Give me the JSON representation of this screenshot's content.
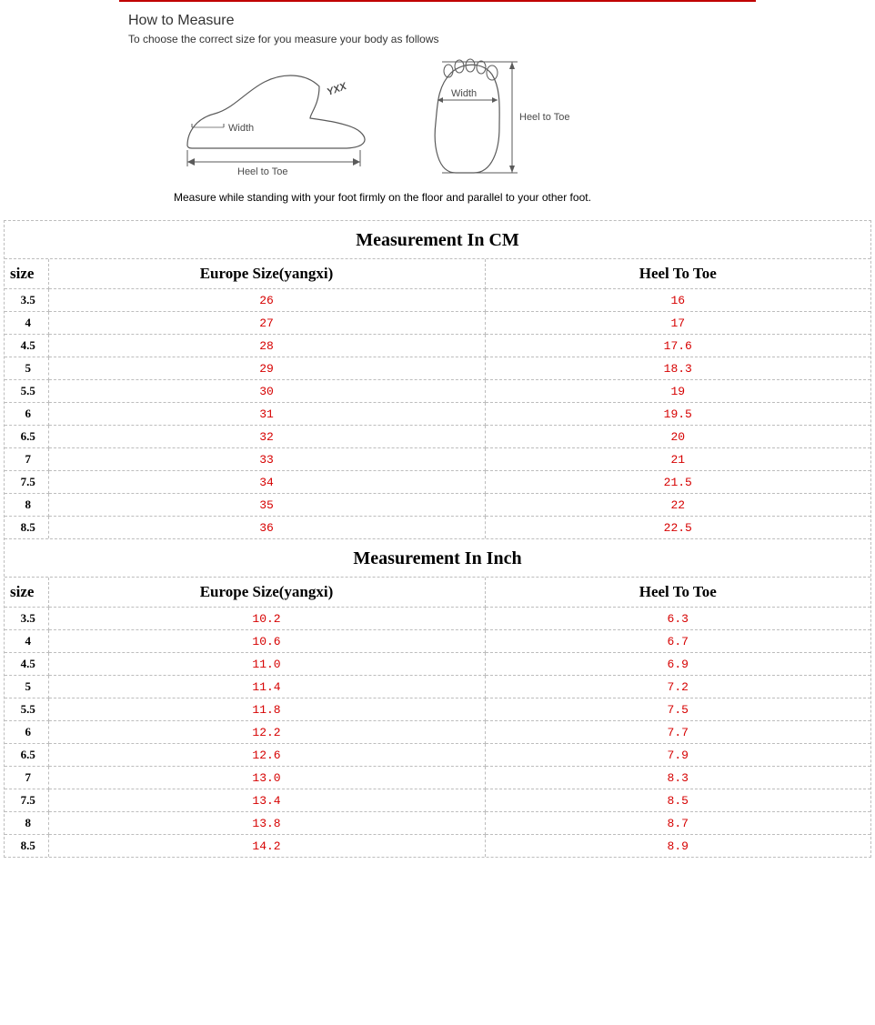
{
  "header": {
    "rule_color": "#c00000",
    "title": "How to Measure",
    "subtitle": "To choose the correct size for you measure your body as follows",
    "diagram": {
      "side": {
        "width_label": "Width",
        "heel_label": "Heel to Toe",
        "watermark": "YXX"
      },
      "top": {
        "width_label": "Width",
        "heel_label": "Heel to Toe"
      }
    },
    "note": "Measure while standing with your foot firmly on the floor and parallel to your other foot."
  },
  "tables": {
    "cm": {
      "title": "Measurement In CM",
      "columns": [
        "size",
        "Europe Size(yangxi)",
        "Heel To Toe"
      ],
      "rows": [
        [
          "3.5",
          "26",
          "16"
        ],
        [
          "4",
          "27",
          "17"
        ],
        [
          "4.5",
          "28",
          "17.6"
        ],
        [
          "5",
          "29",
          "18.3"
        ],
        [
          "5.5",
          "30",
          "19"
        ],
        [
          "6",
          "31",
          "19.5"
        ],
        [
          "6.5",
          "32",
          "20"
        ],
        [
          "7",
          "33",
          "21"
        ],
        [
          "7.5",
          "34",
          "21.5"
        ],
        [
          "8",
          "35",
          "22"
        ],
        [
          "8.5",
          "36",
          "22.5"
        ]
      ]
    },
    "inch": {
      "title": "Measurement In Inch",
      "columns": [
        "size",
        "Europe Size(yangxi)",
        "Heel To Toe"
      ],
      "rows": [
        [
          "3.5",
          "10.2",
          "6.3"
        ],
        [
          "4",
          "10.6",
          "6.7"
        ],
        [
          "4.5",
          "11.0",
          "6.9"
        ],
        [
          "5",
          "11.4",
          "7.2"
        ],
        [
          "5.5",
          "11.8",
          "7.5"
        ],
        [
          "6",
          "12.2",
          "7.7"
        ],
        [
          "6.5",
          "12.6",
          "7.9"
        ],
        [
          "7",
          "13.0",
          "8.3"
        ],
        [
          "7.5",
          "13.4",
          "8.5"
        ],
        [
          "8",
          "13.8",
          "8.7"
        ],
        [
          "8.5",
          "14.2",
          "8.9"
        ]
      ]
    },
    "style": {
      "value_color": "#d60000",
      "border_color": "#bdbdbd",
      "title_font": "Georgia"
    }
  }
}
